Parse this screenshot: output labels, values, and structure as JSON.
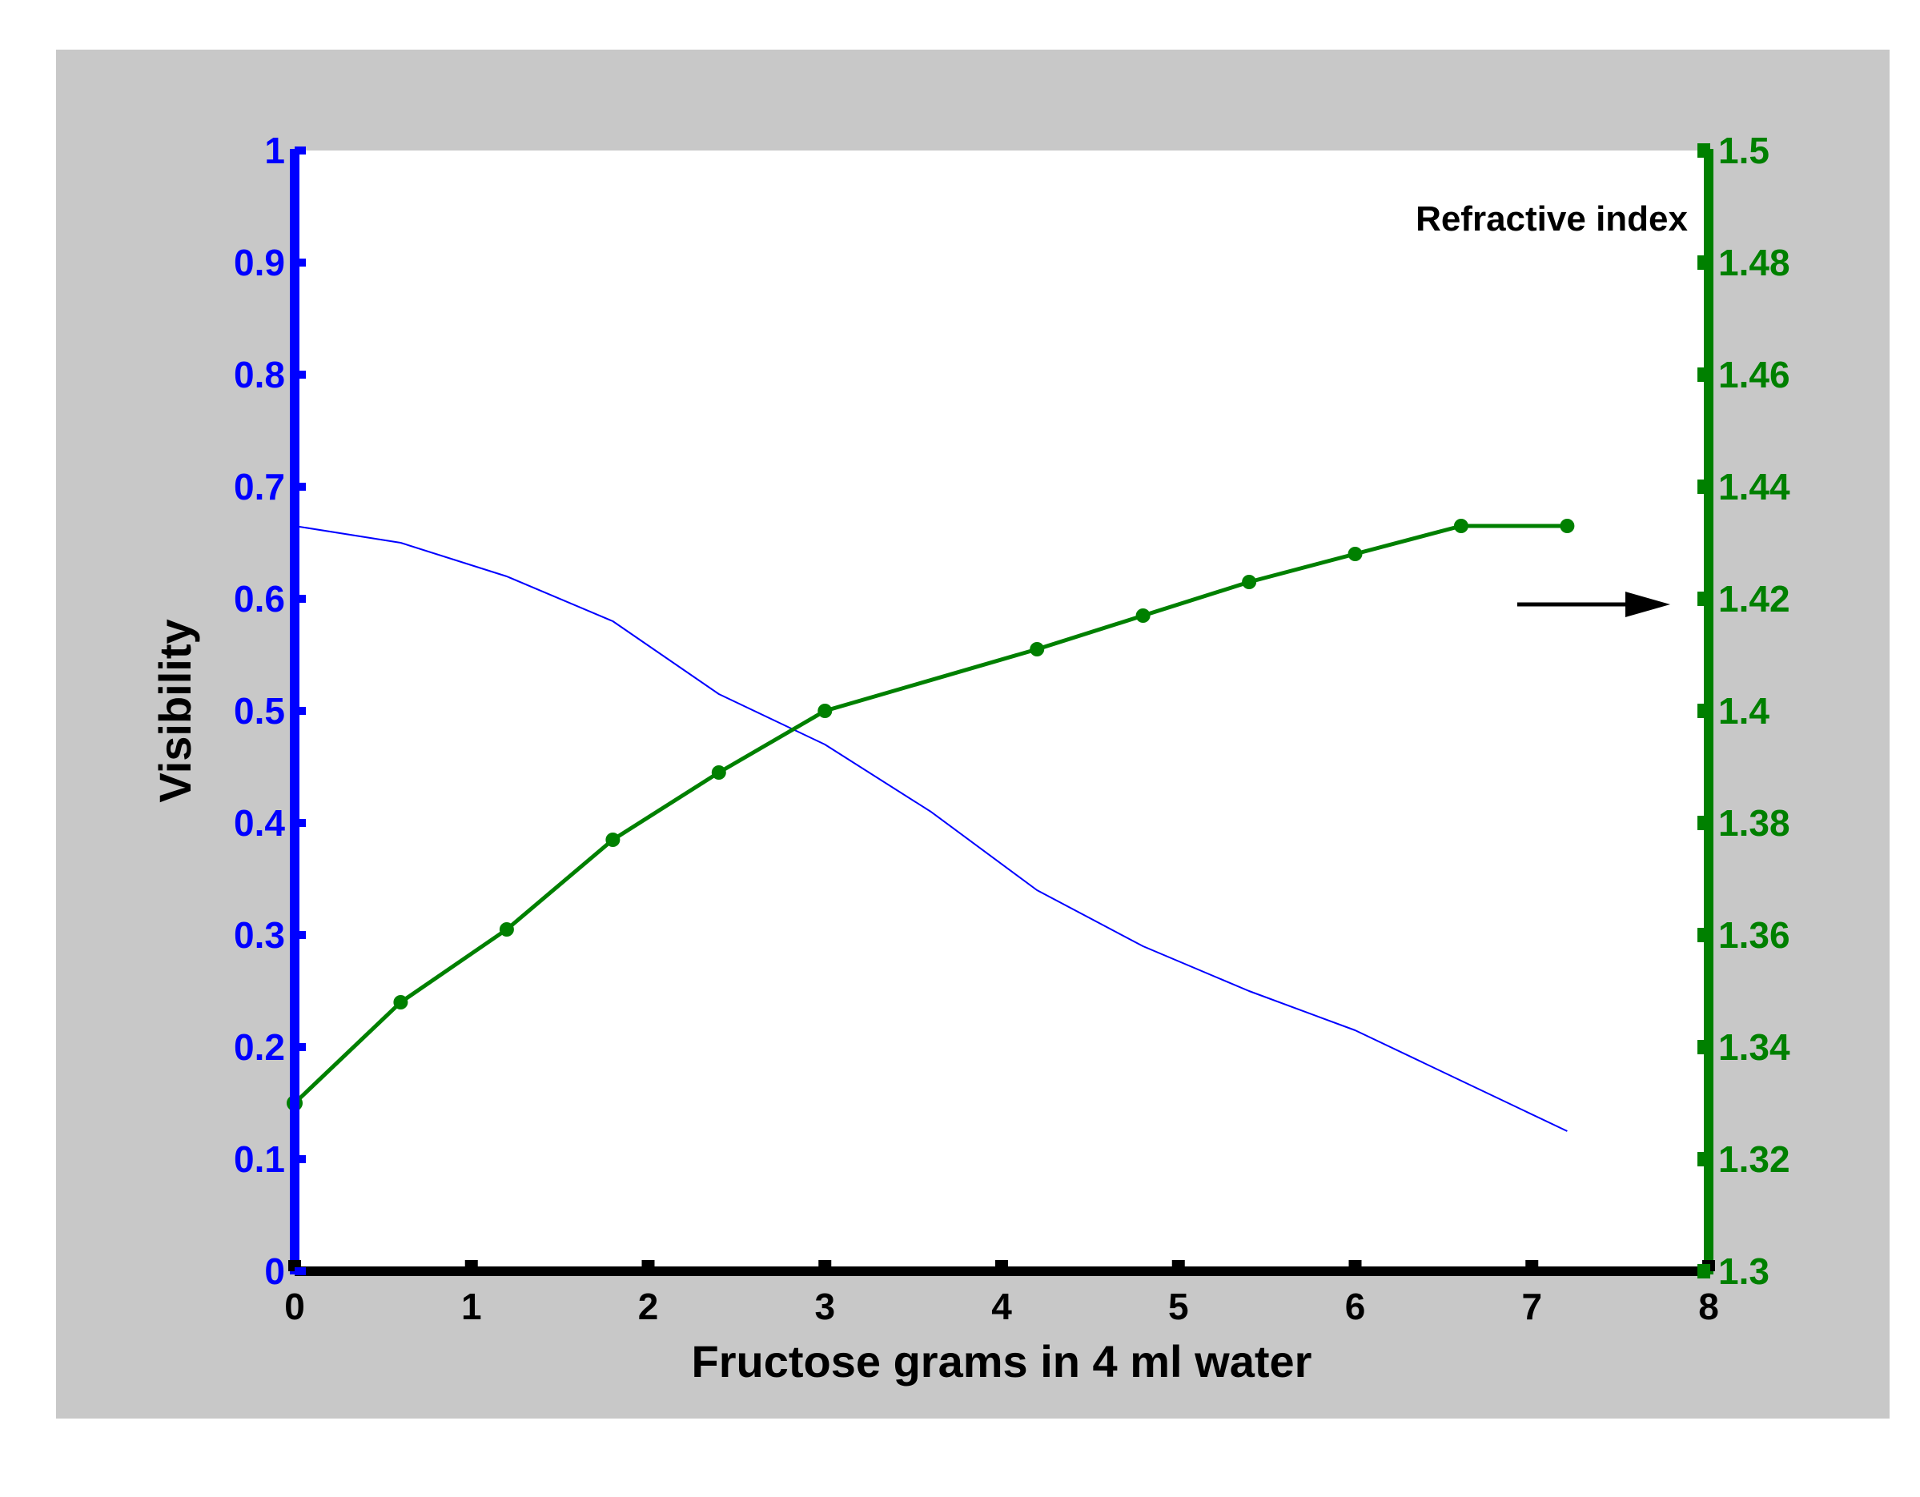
{
  "chart_data": {
    "type": "line",
    "title": "",
    "xlabel": "Fructose grams in 4 ml water",
    "ylabel": "Visibility",
    "ylabel_right": "",
    "annotation": "Refractive index",
    "xlim": [
      0,
      8
    ],
    "ylim": [
      0,
      1
    ],
    "ylim_right": [
      1.3,
      1.5
    ],
    "x_ticks": [
      "0",
      "1",
      "2",
      "3",
      "4",
      "5",
      "6",
      "7",
      "8"
    ],
    "y_ticks_left": [
      "0",
      "0.1",
      "0.2",
      "0.3",
      "0.4",
      "0.5",
      "0.6",
      "0.7",
      "0.8",
      "0.9",
      "1"
    ],
    "y_ticks_right": [
      "1.3",
      "1.32",
      "1.34",
      "1.36",
      "1.38",
      "1.4",
      "1.42",
      "1.44",
      "1.46",
      "1.48",
      "1.5"
    ],
    "grid": false,
    "series": [
      {
        "axis": "left",
        "color": "#0000ff",
        "markers": false,
        "x": [
          0,
          0.6,
          1.2,
          1.8,
          2.4,
          3.0,
          3.6,
          4.2,
          4.8,
          5.4,
          6.0,
          6.6,
          7.2
        ],
        "values": [
          0.665,
          0.65,
          0.62,
          0.58,
          0.515,
          0.47,
          0.41,
          0.34,
          0.29,
          0.25,
          0.215,
          0.17,
          0.125
        ]
      },
      {
        "axis": "right",
        "color": "#008000",
        "markers": true,
        "x": [
          0,
          0.6,
          1.2,
          1.8,
          2.4,
          3.0,
          4.2,
          4.8,
          5.4,
          6.0,
          6.6,
          7.2
        ],
        "values": [
          1.33,
          1.348,
          1.361,
          1.377,
          1.389,
          1.4,
          1.411,
          1.417,
          1.423,
          1.428,
          1.433,
          1.433
        ]
      }
    ],
    "arrow_points_to_right_value": 1.419,
    "colors": {
      "frame_background": "#c8c8c8",
      "plot_background": "#ffffff",
      "left_axis": "#0000ff",
      "right_axis": "#008000",
      "x_axis": "#000000"
    }
  }
}
